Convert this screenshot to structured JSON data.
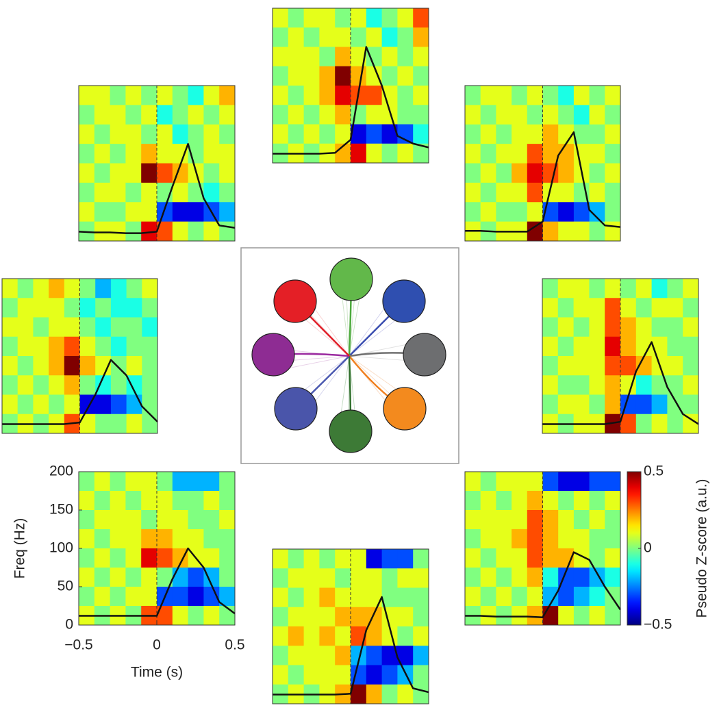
{
  "chart_data": {
    "type": "heatmap",
    "x_label": "Time (s)",
    "y_label": "Freq (Hz)",
    "xlim": [
      -0.5,
      0.5
    ],
    "ylim": [
      0,
      200
    ],
    "xticks": [
      {
        "value": -0.5,
        "label": "−0.5"
      },
      0,
      0.5
    ],
    "yticks": [
      0,
      50,
      100,
      150,
      200
    ],
    "colorbar_label": "Pseudo Z-score (a.u.)",
    "clim": [
      -0.5,
      0.5
    ],
    "cticks": [
      {
        "value": -0.5,
        "label": "−0.5"
      },
      0,
      0.5
    ],
    "time": [
      -0.5,
      -0.4,
      -0.3,
      -0.2,
      -0.1,
      0,
      0.1,
      0.2,
      0.3,
      0.4,
      0.5
    ],
    "panels": [
      {
        "trace": [
          12,
          11,
          11,
          10,
          10,
          12,
          70,
          125,
          55,
          20,
          17
        ],
        "z": [
          [
            0.1,
            0.1,
            0.0,
            0.1,
            0.0,
            0.1,
            0.0,
            -0.1,
            0.1,
            0.2
          ],
          [
            0.0,
            0.1,
            0.1,
            0.0,
            0.1,
            -0.1,
            0.0,
            0.1,
            0.0,
            0.1
          ],
          [
            0.1,
            0.0,
            0.1,
            0.1,
            0.0,
            0.1,
            -0.1,
            0.0,
            0.1,
            0.0
          ],
          [
            0.0,
            0.1,
            0.0,
            0.1,
            0.2,
            0.1,
            0.1,
            0.0,
            0.1,
            0.1
          ],
          [
            0.1,
            0.0,
            0.1,
            0.1,
            0.5,
            0.3,
            0.2,
            0.1,
            0.0,
            0.1
          ],
          [
            0.0,
            0.1,
            0.1,
            0.0,
            0.1,
            0.0,
            0.1,
            0.0,
            -0.1,
            0.0
          ],
          [
            0.1,
            0.0,
            0.0,
            0.1,
            0.1,
            -0.3,
            -0.4,
            -0.4,
            -0.3,
            -0.2
          ],
          [
            0.0,
            0.1,
            0.1,
            0.0,
            0.4,
            0.3,
            0.1,
            0.0,
            0.1,
            0.0
          ]
        ]
      },
      {
        "trace": [
          12,
          12,
          12,
          12,
          13,
          30,
          150,
          100,
          35,
          25,
          20
        ],
        "z": [
          [
            0.1,
            0.0,
            0.1,
            0.1,
            0.0,
            0.1,
            -0.1,
            0.0,
            0.1,
            0.3
          ],
          [
            0.0,
            0.1,
            0.0,
            0.1,
            0.1,
            0.0,
            0.1,
            -0.1,
            0.0,
            0.2
          ],
          [
            0.1,
            0.1,
            0.1,
            0.0,
            0.2,
            0.1,
            0.0,
            0.1,
            0.0,
            0.1
          ],
          [
            0.0,
            0.1,
            0.1,
            0.2,
            0.5,
            0.2,
            0.1,
            0.0,
            0.1,
            0.0
          ],
          [
            0.1,
            0.0,
            0.1,
            0.2,
            0.4,
            0.3,
            0.3,
            0.1,
            0.0,
            0.1
          ],
          [
            0.0,
            0.1,
            0.0,
            0.1,
            0.2,
            0.0,
            0.1,
            0.1,
            0.0,
            0.0
          ],
          [
            0.1,
            0.0,
            0.1,
            0.0,
            0.1,
            -0.4,
            -0.3,
            -0.4,
            -0.3,
            -0.1
          ],
          [
            0.0,
            0.1,
            0.0,
            0.1,
            0.2,
            0.4,
            0.1,
            0.0,
            0.1,
            0.0
          ]
        ]
      },
      {
        "trace": [
          13,
          13,
          12,
          12,
          12,
          25,
          110,
          140,
          40,
          20,
          18
        ],
        "z": [
          [
            0.0,
            0.1,
            0.1,
            0.0,
            0.1,
            0.0,
            -0.1,
            0.1,
            0.0,
            0.1
          ],
          [
            0.1,
            0.0,
            0.1,
            0.1,
            0.0,
            0.1,
            0.0,
            -0.1,
            0.1,
            0.0
          ],
          [
            0.0,
            0.1,
            0.0,
            0.1,
            0.1,
            0.2,
            0.1,
            0.0,
            0.0,
            0.1
          ],
          [
            0.1,
            0.0,
            0.1,
            0.1,
            0.3,
            0.2,
            0.2,
            0.1,
            0.1,
            0.0
          ],
          [
            0.0,
            0.1,
            0.0,
            0.2,
            0.4,
            0.3,
            0.2,
            0.1,
            0.0,
            0.1
          ],
          [
            0.1,
            0.0,
            0.1,
            0.1,
            0.3,
            0.1,
            0.1,
            0.0,
            0.1,
            0.0
          ],
          [
            0.0,
            0.1,
            0.0,
            0.0,
            0.1,
            -0.3,
            -0.4,
            -0.3,
            -0.2,
            0.0
          ],
          [
            0.1,
            0.0,
            0.1,
            0.1,
            0.5,
            0.2,
            0.1,
            0.1,
            0.0,
            0.1
          ]
        ]
      },
      {
        "trace": [
          12,
          12,
          12,
          12,
          12,
          14,
          50,
          95,
          75,
          35,
          15
        ],
        "z": [
          [
            0.1,
            0.0,
            0.1,
            0.2,
            0.1,
            0.0,
            -0.2,
            -0.1,
            0.0,
            0.1
          ],
          [
            0.0,
            0.1,
            0.1,
            0.1,
            0.0,
            -0.1,
            0.0,
            -0.1,
            -0.1,
            0.0
          ],
          [
            0.1,
            0.1,
            0.0,
            0.1,
            0.1,
            0.0,
            -0.1,
            0.0,
            0.0,
            -0.1
          ],
          [
            0.0,
            0.1,
            0.1,
            0.2,
            0.3,
            0.1,
            0.0,
            -0.1,
            0.0,
            0.0
          ],
          [
            0.1,
            0.0,
            0.1,
            0.2,
            0.5,
            0.2,
            0.1,
            0.0,
            0.1,
            0.0
          ],
          [
            0.0,
            0.1,
            0.0,
            0.1,
            0.2,
            0.0,
            -0.1,
            0.0,
            -0.1,
            0.0
          ],
          [
            0.1,
            0.0,
            0.1,
            0.0,
            0.1,
            -0.4,
            -0.4,
            -0.3,
            -0.2,
            0.0
          ],
          [
            0.0,
            0.1,
            0.0,
            0.1,
            0.3,
            0.1,
            0.0,
            0.0,
            0.1,
            0.0
          ]
        ]
      },
      {
        "trace": [
          12,
          12,
          12,
          12,
          12,
          15,
          80,
          118,
          60,
          25,
          12
        ],
        "z": [
          [
            0.0,
            0.1,
            0.1,
            0.0,
            0.1,
            0.0,
            0.1,
            -0.1,
            0.0,
            0.1
          ],
          [
            0.1,
            0.0,
            0.1,
            0.1,
            0.3,
            0.1,
            0.0,
            0.1,
            0.1,
            0.0
          ],
          [
            0.0,
            0.1,
            0.0,
            0.1,
            0.3,
            0.2,
            0.1,
            0.0,
            0.0,
            0.1
          ],
          [
            0.1,
            0.0,
            0.1,
            0.1,
            0.4,
            0.2,
            0.1,
            0.1,
            0.0,
            0.0
          ],
          [
            0.0,
            0.1,
            0.1,
            0.1,
            0.3,
            0.3,
            0.2,
            0.1,
            0.1,
            0.0
          ],
          [
            0.1,
            0.0,
            0.0,
            0.1,
            0.2,
            0.1,
            -0.1,
            0.0,
            0.0,
            0.1
          ],
          [
            0.0,
            0.1,
            0.1,
            0.0,
            0.2,
            -0.3,
            -0.3,
            -0.2,
            0.0,
            0.0
          ],
          [
            0.1,
            0.0,
            0.1,
            0.1,
            0.5,
            0.3,
            0.0,
            0.1,
            0.0,
            0.1
          ]
        ]
      },
      {
        "trace": [
          12,
          12,
          12,
          12,
          12,
          12,
          60,
          100,
          75,
          30,
          15
        ],
        "z": [
          [
            0.0,
            0.1,
            0.0,
            0.1,
            0.1,
            0.0,
            -0.2,
            -0.2,
            -0.2,
            0.0
          ],
          [
            0.1,
            0.0,
            0.1,
            0.0,
            0.1,
            0.1,
            0.0,
            0.0,
            0.1,
            0.0
          ],
          [
            0.0,
            0.1,
            0.1,
            0.1,
            0.0,
            0.1,
            0.1,
            0.0,
            0.0,
            0.1
          ],
          [
            0.1,
            0.0,
            0.1,
            0.1,
            0.2,
            0.2,
            0.1,
            0.1,
            0.0,
            0.0
          ],
          [
            0.0,
            0.1,
            0.0,
            0.1,
            0.4,
            0.3,
            0.2,
            0.1,
            0.1,
            0.0
          ],
          [
            0.1,
            0.0,
            0.1,
            0.0,
            0.1,
            0.0,
            -0.2,
            -0.3,
            -0.2,
            0.0
          ],
          [
            0.0,
            0.1,
            0.0,
            0.1,
            0.1,
            -0.3,
            -0.3,
            -0.4,
            -0.3,
            -0.2
          ],
          [
            0.1,
            0.0,
            0.1,
            0.0,
            0.3,
            0.3,
            0.1,
            0.0,
            0.1,
            0.0
          ]
        ]
      },
      {
        "trace": [
          12,
          12,
          11,
          11,
          11,
          10,
          45,
          95,
          85,
          50,
          20
        ],
        "z": [
          [
            0.1,
            0.0,
            0.1,
            0.1,
            0.1,
            -0.3,
            -0.4,
            -0.4,
            -0.3,
            -0.3
          ],
          [
            0.0,
            0.1,
            0.0,
            0.1,
            0.2,
            0.1,
            0.0,
            0.1,
            0.0,
            0.1
          ],
          [
            0.1,
            0.1,
            0.1,
            0.1,
            0.3,
            0.2,
            0.1,
            0.0,
            0.1,
            0.0
          ],
          [
            0.0,
            0.1,
            0.1,
            0.2,
            0.3,
            0.2,
            0.1,
            0.1,
            0.0,
            0.0
          ],
          [
            0.1,
            0.0,
            0.1,
            0.1,
            0.3,
            0.2,
            0.2,
            0.1,
            0.0,
            0.1
          ],
          [
            0.0,
            0.1,
            0.0,
            0.1,
            0.2,
            -0.1,
            -0.3,
            -0.3,
            -0.2,
            -0.1
          ],
          [
            0.1,
            0.0,
            0.1,
            0.0,
            0.1,
            -0.2,
            -0.3,
            -0.2,
            -0.1,
            0.0
          ],
          [
            0.0,
            0.1,
            0.0,
            0.1,
            0.2,
            0.5,
            0.1,
            0.0,
            0.1,
            0.0
          ]
        ]
      },
      {
        "trace": [
          12,
          12,
          12,
          12,
          12,
          13,
          95,
          138,
          60,
          20,
          15
        ],
        "z": [
          [
            0.1,
            0.0,
            0.1,
            0.0,
            0.1,
            0.1,
            -0.4,
            -0.3,
            -0.3,
            0.0
          ],
          [
            0.0,
            0.1,
            0.1,
            0.1,
            0.0,
            0.1,
            0.1,
            0.0,
            0.1,
            0.1
          ],
          [
            0.1,
            0.0,
            0.1,
            0.2,
            0.1,
            0.1,
            0.1,
            0.0,
            0.0,
            0.0
          ],
          [
            0.0,
            0.1,
            0.1,
            0.1,
            0.2,
            0.2,
            0.2,
            0.1,
            0.1,
            0.0
          ],
          [
            0.1,
            0.2,
            0.1,
            0.2,
            0.1,
            0.3,
            0.2,
            0.1,
            0.0,
            0.1
          ],
          [
            0.0,
            0.1,
            0.1,
            0.1,
            0.2,
            -0.2,
            -0.3,
            -0.4,
            -0.4,
            -0.2
          ],
          [
            0.1,
            0.0,
            0.1,
            0.1,
            0.1,
            -0.3,
            -0.4,
            -0.3,
            -0.2,
            0.0
          ],
          [
            0.0,
            0.1,
            0.0,
            0.1,
            0.2,
            0.5,
            0.2,
            0.0,
            0.1,
            0.0
          ]
        ]
      }
    ]
  }
}
